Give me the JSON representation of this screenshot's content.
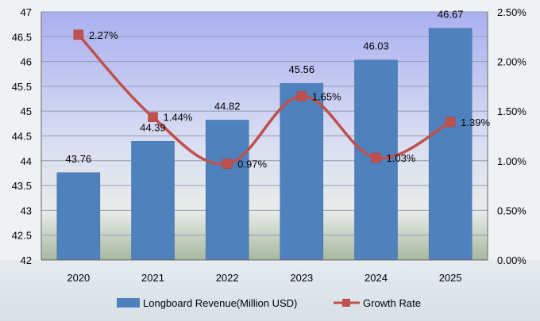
{
  "chart_data": {
    "type": "bar+line",
    "categories": [
      "2020",
      "2021",
      "2022",
      "2023",
      "2024",
      "2025"
    ],
    "series": [
      {
        "name": "Longboard Revenue(Million USD)",
        "type": "bar",
        "axis": "left",
        "values": [
          43.76,
          44.39,
          44.82,
          45.56,
          46.03,
          46.67
        ],
        "labels": [
          "43.76",
          "44.39",
          "44.82",
          "45.56",
          "46.03",
          "46.67"
        ]
      },
      {
        "name": "Growth Rate",
        "type": "line",
        "axis": "right",
        "values": [
          2.27,
          1.44,
          0.97,
          1.65,
          1.03,
          1.39
        ],
        "labels": [
          "2.27%",
          "1.44%",
          "0.97%",
          "1.65%",
          "1.03%",
          "1.39%"
        ]
      }
    ],
    "left_axis": {
      "ylim": [
        42,
        47
      ],
      "ticks": [
        "42",
        "42.5",
        "43",
        "43.5",
        "44",
        "44.5",
        "45",
        "45.5",
        "46",
        "46.5",
        "47"
      ]
    },
    "right_axis": {
      "ylim": [
        0,
        2.5
      ],
      "ticks": [
        "0.00%",
        "0.50%",
        "1.00%",
        "1.50%",
        "2.00%",
        "2.50%"
      ]
    },
    "grid": true,
    "legend": "bottom",
    "colors": {
      "bar": "#4f81bd",
      "bar_edge": "#3a6ba0",
      "line": "#c0504d",
      "marker": "#c0504d",
      "text": "#000000",
      "grid": "#8e9bb0"
    }
  }
}
